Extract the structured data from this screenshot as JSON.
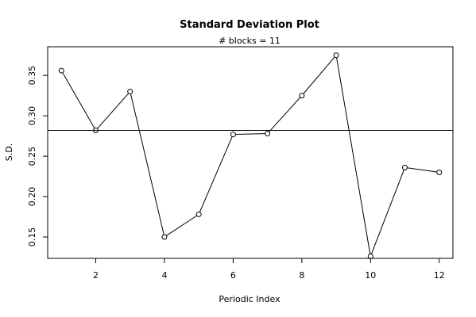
{
  "chart_data": {
    "type": "line",
    "title": "Standard Deviation Plot",
    "subtitle": "# blocks =  11",
    "xlabel": "Periodic Index",
    "ylabel": "S.D.",
    "x": [
      1,
      2,
      3,
      4,
      5,
      6,
      7,
      8,
      9,
      10,
      11,
      12
    ],
    "series": [
      {
        "values": [
          0.356,
          0.282,
          0.33,
          0.15,
          0.178,
          0.277,
          0.278,
          0.325,
          0.375,
          0.126,
          0.236,
          0.23
        ]
      }
    ],
    "reference_line": 0.282,
    "xlim": [
      0.6,
      12.4
    ],
    "ylim": [
      0.1235,
      0.3855
    ],
    "x_ticks": [
      2,
      4,
      6,
      8,
      10,
      12
    ],
    "y_ticks": [
      0.15,
      0.2,
      0.25,
      0.3,
      0.35
    ],
    "y_tick_labels": [
      "0.15",
      "0.20",
      "0.25",
      "0.30",
      "0.35"
    ],
    "grid": false,
    "marker": "open-circle",
    "line_color": "#000000"
  }
}
